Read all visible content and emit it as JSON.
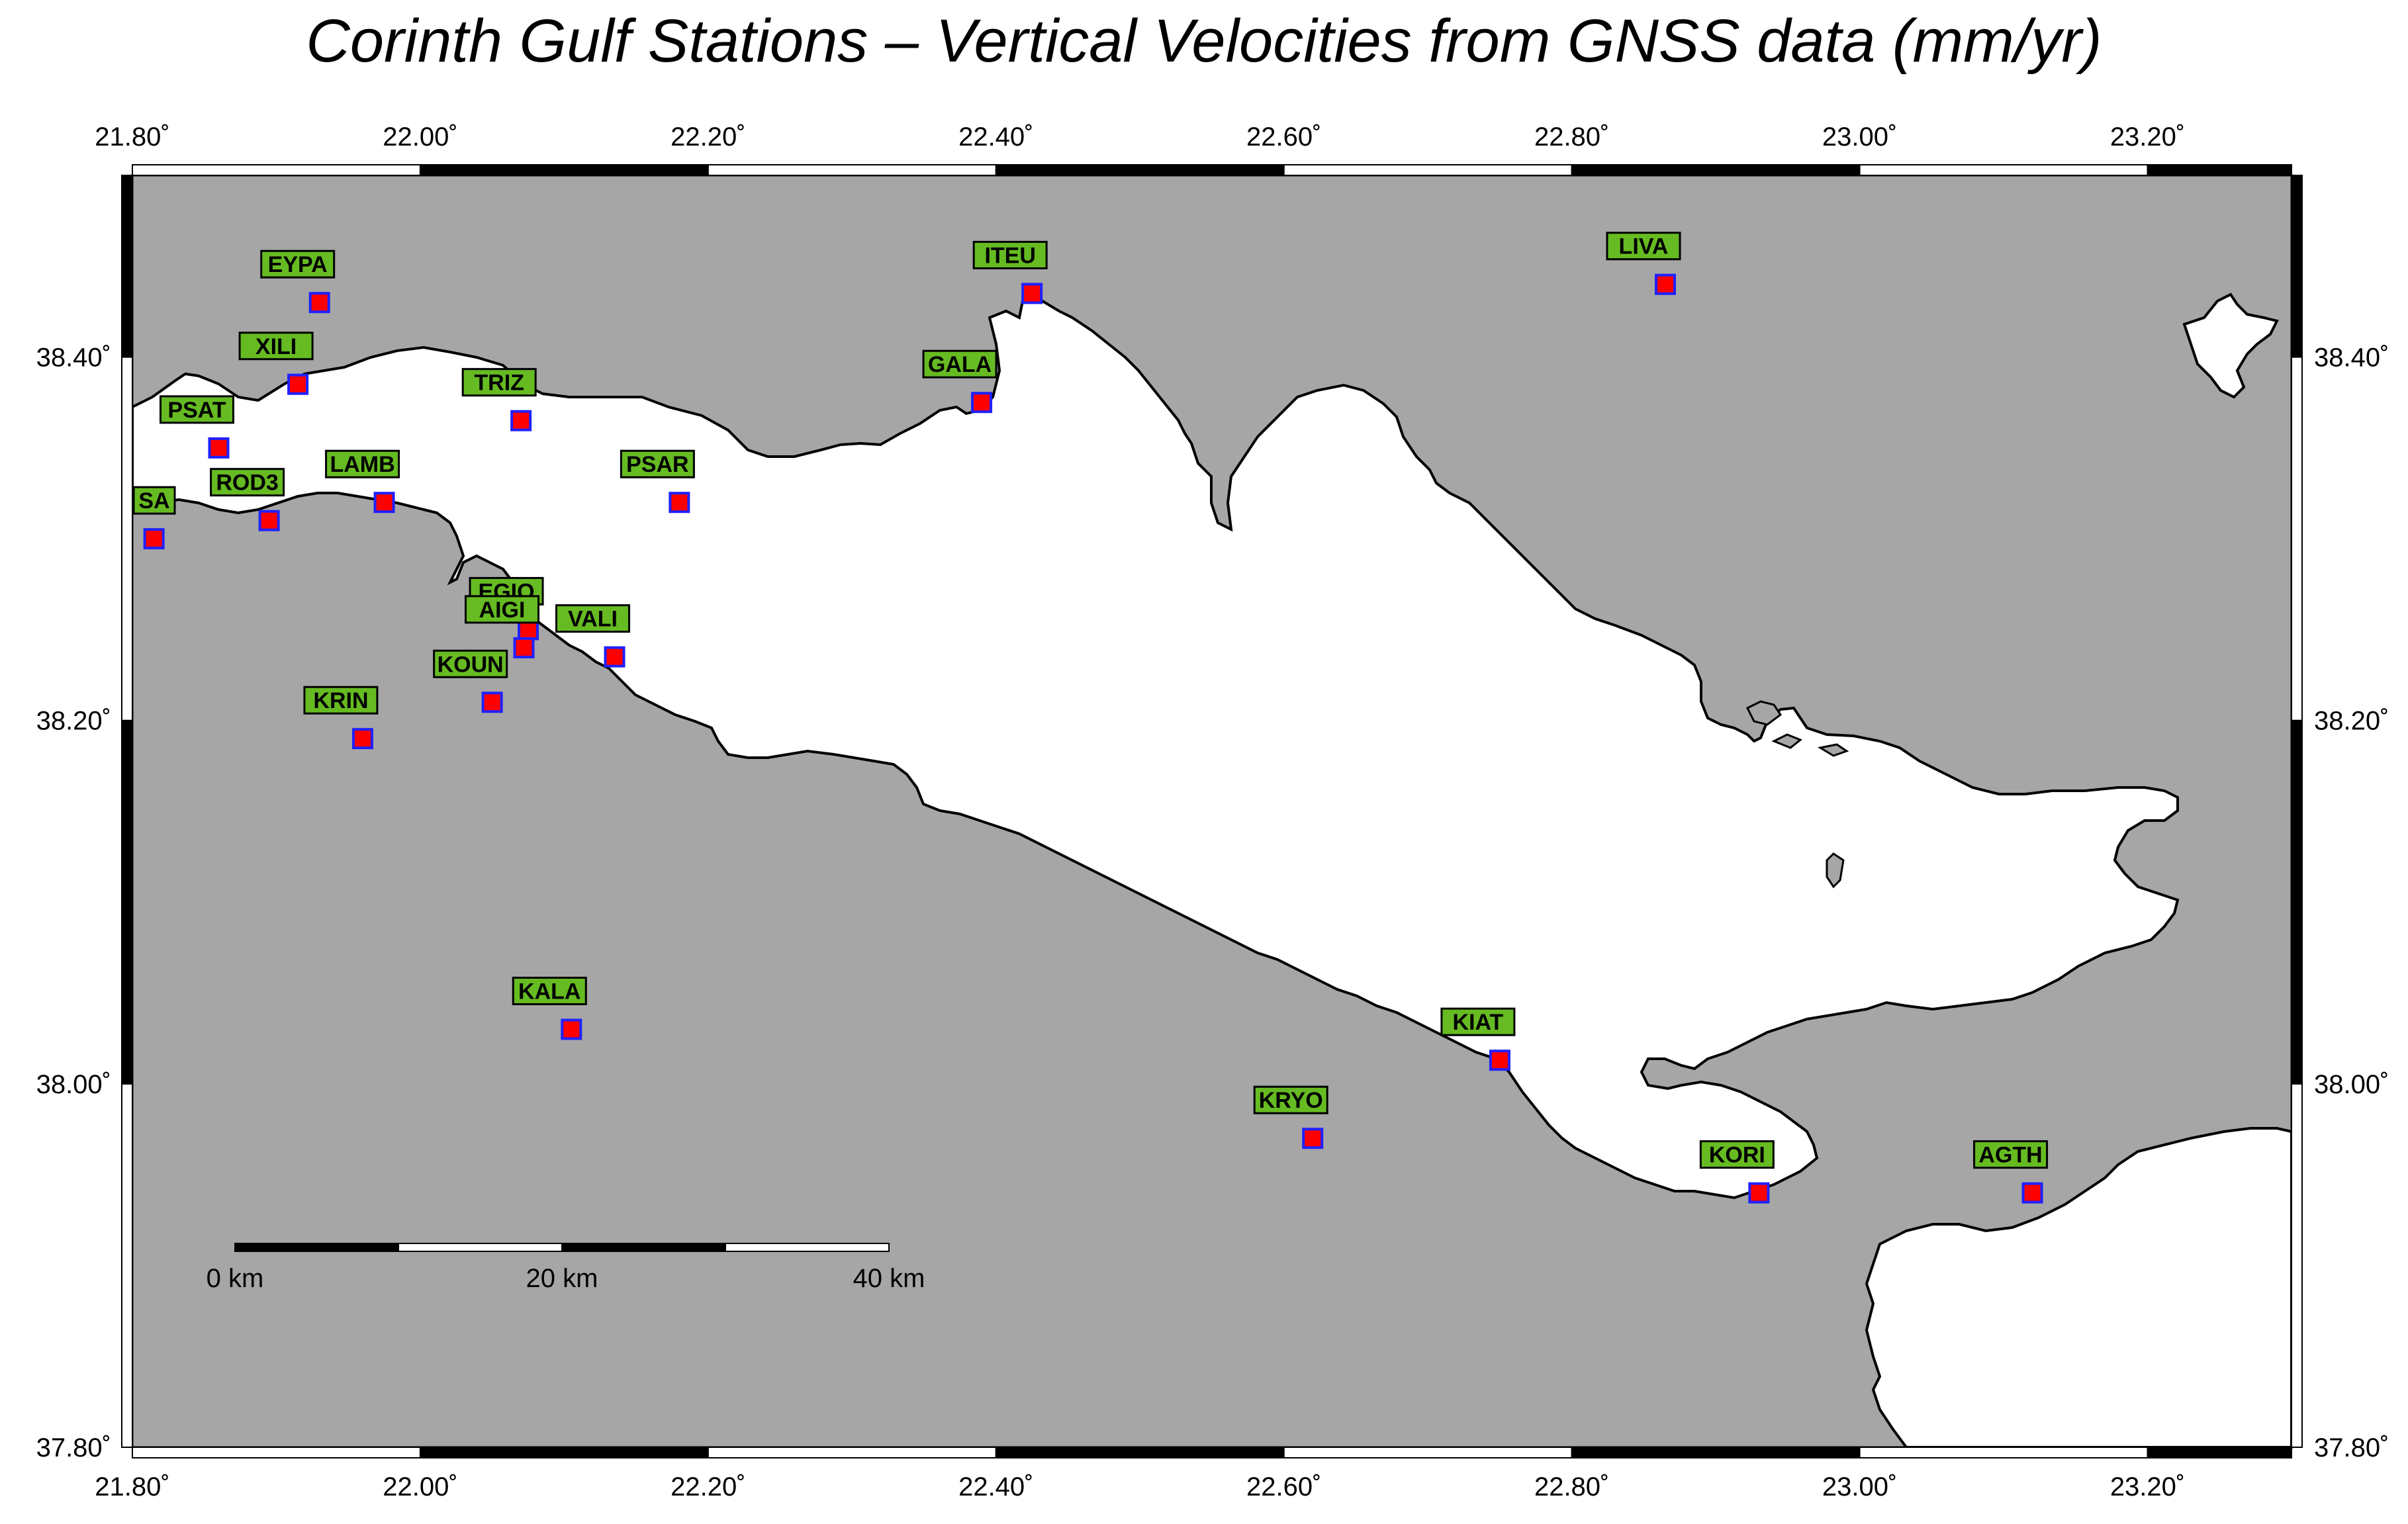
{
  "title": "Corinth Gulf Stations – Vertical Velocities from GNSS data (mm/yr)",
  "colors": {
    "land": "#a6a6a6",
    "sea": "#ffffff",
    "coastline": "#000000",
    "station_fill": "#ff0000",
    "station_stroke": "#2020ff",
    "label_fill": "#66bb22",
    "label_stroke": "#000000"
  },
  "axes": {
    "lon_range": [
      21.8,
      23.3
    ],
    "lat_range": [
      37.8,
      38.5
    ],
    "lon_ticks": [
      "21.80˚",
      "22.00˚",
      "22.20˚",
      "22.40˚",
      "22.60˚",
      "22.80˚",
      "23.00˚",
      "23.20˚"
    ],
    "lat_ticks": [
      "37.80˚",
      "38.00˚",
      "38.20˚",
      "38.40˚"
    ]
  },
  "scale_bar": {
    "labels": [
      "0 km",
      "20 km",
      "40 km"
    ]
  },
  "stations": [
    {
      "name": "EYPA",
      "lon": 21.93,
      "lat": 38.43
    },
    {
      "name": "XILI",
      "lon": 21.915,
      "lat": 38.385
    },
    {
      "name": "PSAT",
      "lon": 21.86,
      "lat": 38.35
    },
    {
      "name": "ROD3",
      "lon": 21.895,
      "lat": 38.31
    },
    {
      "name": "SA",
      "lon": 21.815,
      "lat": 38.3
    },
    {
      "name": "LAMB",
      "lon": 21.975,
      "lat": 38.32
    },
    {
      "name": "TRIZ",
      "lon": 22.07,
      "lat": 38.365
    },
    {
      "name": "PSAR",
      "lon": 22.18,
      "lat": 38.32
    },
    {
      "name": "EGIO",
      "lon": 22.075,
      "lat": 38.25
    },
    {
      "name": "AIGI",
      "lon": 22.072,
      "lat": 38.24
    },
    {
      "name": "VALI",
      "lon": 22.135,
      "lat": 38.235
    },
    {
      "name": "KOUN",
      "lon": 22.05,
      "lat": 38.21
    },
    {
      "name": "KRIN",
      "lon": 21.96,
      "lat": 38.19
    },
    {
      "name": "ITEU",
      "lon": 22.425,
      "lat": 38.435
    },
    {
      "name": "GALA",
      "lon": 22.39,
      "lat": 38.375
    },
    {
      "name": "LIVA",
      "lon": 22.865,
      "lat": 38.44
    },
    {
      "name": "KALA",
      "lon": 22.105,
      "lat": 38.03
    },
    {
      "name": "KIAT",
      "lon": 22.75,
      "lat": 38.013
    },
    {
      "name": "KRYO",
      "lon": 22.62,
      "lat": 37.97
    },
    {
      "name": "KORI",
      "lon": 22.93,
      "lat": 37.94
    },
    {
      "name": "AGTH",
      "lon": 23.12,
      "lat": 37.94
    }
  ]
}
